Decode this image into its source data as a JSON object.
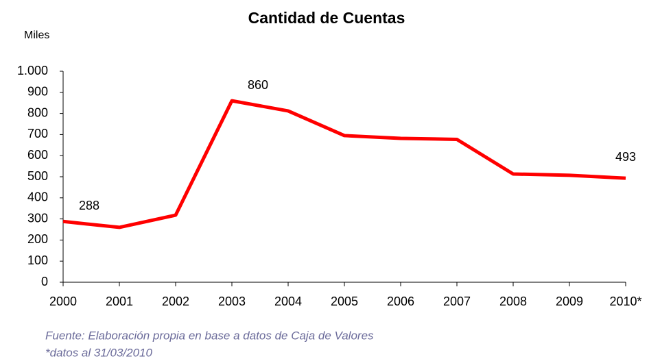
{
  "chart_data": {
    "type": "line",
    "title": "Cantidad de Cuentas",
    "y_unit_label": "Miles",
    "categories": [
      "2000",
      "2001",
      "2002",
      "2003",
      "2004",
      "2005",
      "2006",
      "2007",
      "2008",
      "2009",
      "2010*"
    ],
    "series": [
      {
        "name": "Cantidad de Cuentas",
        "color": "#ff0000",
        "values": [
          288,
          260,
          318,
          860,
          812,
          695,
          682,
          677,
          513,
          507,
          493
        ],
        "value_labels": [
          "288",
          null,
          null,
          "860",
          null,
          null,
          null,
          null,
          null,
          null,
          "493"
        ]
      }
    ],
    "ylim": [
      0,
      1000
    ],
    "yticks": [
      0,
      100,
      200,
      300,
      400,
      500,
      600,
      700,
      800,
      900,
      {
        "value": 1000,
        "label": "1.000"
      }
    ],
    "grid": false,
    "footnotes": [
      "Fuente: Elaboración propia en base a datos de Caja de Valores",
      "*datos al 31/03/2010"
    ]
  }
}
